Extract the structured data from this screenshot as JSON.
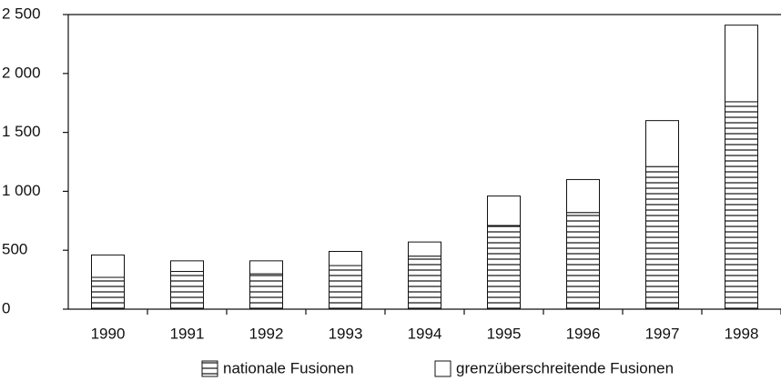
{
  "chart_data": {
    "type": "stacked_bar",
    "categories": [
      "1990",
      "1991",
      "1992",
      "1993",
      "1994",
      "1995",
      "1996",
      "1997",
      "1998"
    ],
    "series": [
      {
        "name": "nationale Fusionen",
        "color": "#000000",
        "hatch": true,
        "values": [
          270,
          320,
          300,
          370,
          450,
          710,
          820,
          1210,
          1760
        ]
      },
      {
        "name": "grenzüberschreitende Fusionen",
        "color": "#ffffff",
        "hatch": false,
        "values": [
          190,
          90,
          110,
          120,
          120,
          250,
          280,
          390,
          650
        ]
      }
    ],
    "ylim": [
      0,
      2500
    ],
    "yticks": [
      0,
      500,
      {
        "value": 1000,
        "label": "1 000"
      },
      {
        "value": 1500,
        "label": "1 500"
      },
      {
        "value": 2000,
        "label": "2 000"
      },
      {
        "value": 2500,
        "label": "2 500"
      }
    ],
    "grid": false,
    "legend": "bottom"
  }
}
